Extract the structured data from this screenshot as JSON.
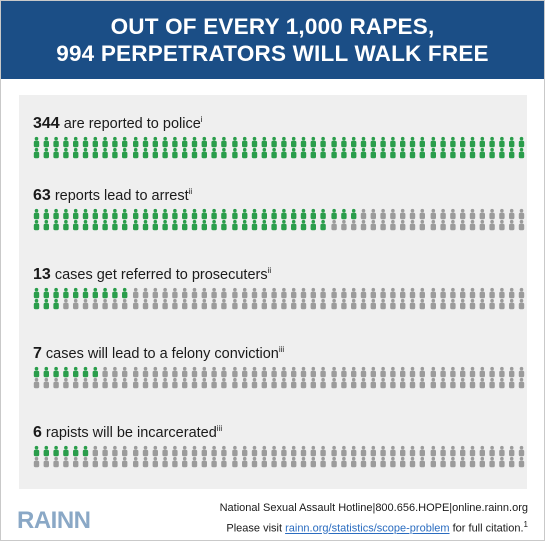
{
  "title": {
    "line1": "OUT OF EVERY 1,000 RAPES,",
    "line2": "994 PERPETRATORS WILL WALK FREE"
  },
  "colors": {
    "header_bg": "#1b4e86",
    "highlight": "#2a9d4b",
    "neutral": "#9b9b9b",
    "panel_bg": "#efefef"
  },
  "chart_data": {
    "type": "pictograph",
    "total": 1000,
    "rows": [
      {
        "value": 344,
        "value_text": "344",
        "label": " are reported to police",
        "note": "i"
      },
      {
        "value": 63,
        "value_text": "63",
        "label": " reports lead to arrest",
        "note": "ii"
      },
      {
        "value": 13,
        "value_text": "13",
        "label": " cases get referred to prosecuters",
        "note": "ii"
      },
      {
        "value": 7,
        "value_text": "7",
        "label": " cases will lead to a felony conviction",
        "note": "iii"
      },
      {
        "value": 6,
        "value_text": "6",
        "label": " rapists will be incarcerated",
        "note": "iii"
      }
    ]
  },
  "footer": {
    "hotline": "National Sexual Assault Hotline|800.656.HOPE|online.rainn.org",
    "cite_prefix": "Please visit ",
    "cite_link": "rainn.org/statistics/scope-problem",
    "cite_suffix": " for full citation.",
    "cite_note": "1",
    "logo": "RAINN"
  }
}
